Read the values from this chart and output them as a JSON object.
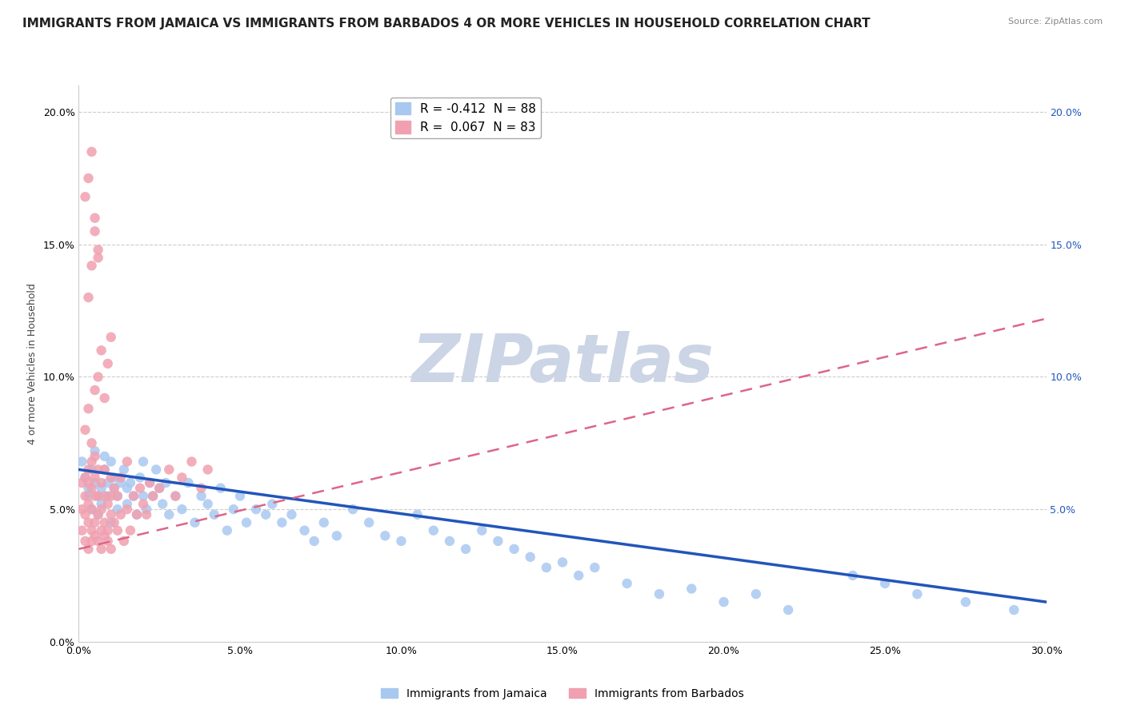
{
  "title": "IMMIGRANTS FROM JAMAICA VS IMMIGRANTS FROM BARBADOS 4 OR MORE VEHICLES IN HOUSEHOLD CORRELATION CHART",
  "source": "Source: ZipAtlas.com",
  "xlabel_bottom": "Immigrants from Jamaica",
  "xlabel_bottom2": "Immigrants from Barbados",
  "ylabel": "4 or more Vehicles in Household",
  "xlim": [
    0.0,
    0.3
  ],
  "ylim": [
    0.0,
    0.21
  ],
  "xticks": [
    0.0,
    0.05,
    0.1,
    0.15,
    0.2,
    0.25,
    0.3
  ],
  "yticks": [
    0.0,
    0.05,
    0.1,
    0.15,
    0.2
  ],
  "xtick_labels": [
    "0.0%",
    "5.0%",
    "10.0%",
    "15.0%",
    "20.0%",
    "25.0%",
    "30.0%"
  ],
  "ytick_labels": [
    "0.0%",
    "5.0%",
    "10.0%",
    "15.0%",
    "20.0%"
  ],
  "jamaica_R": -0.412,
  "jamaica_N": 88,
  "barbados_R": 0.067,
  "barbados_N": 83,
  "jamaica_color": "#a8c8f0",
  "barbados_color": "#f0a0b0",
  "jamaica_line_color": "#2255bb",
  "barbados_line_color": "#dd6688",
  "watermark_text": "ZIPatlas",
  "watermark_color": "#ccd5e5",
  "background_color": "#ffffff",
  "title_fontsize": 11,
  "legend_fontsize": 11,
  "axis_fontsize": 9,
  "jamaica_trend_x0": 0.0,
  "jamaica_trend_y0": 0.065,
  "jamaica_trend_x1": 0.3,
  "jamaica_trend_y1": 0.015,
  "barbados_trend_x0": 0.0,
  "barbados_trend_y0": 0.035,
  "barbados_trend_x1": 0.3,
  "barbados_trend_y1": 0.122,
  "jamaica_scatter_x": [
    0.001,
    0.002,
    0.003,
    0.003,
    0.004,
    0.004,
    0.005,
    0.005,
    0.006,
    0.006,
    0.007,
    0.007,
    0.008,
    0.008,
    0.009,
    0.009,
    0.01,
    0.01,
    0.011,
    0.011,
    0.012,
    0.012,
    0.013,
    0.014,
    0.015,
    0.015,
    0.016,
    0.017,
    0.018,
    0.019,
    0.02,
    0.02,
    0.021,
    0.022,
    0.023,
    0.024,
    0.025,
    0.026,
    0.027,
    0.028,
    0.03,
    0.032,
    0.034,
    0.036,
    0.038,
    0.04,
    0.042,
    0.044,
    0.046,
    0.048,
    0.05,
    0.052,
    0.055,
    0.058,
    0.06,
    0.063,
    0.066,
    0.07,
    0.073,
    0.076,
    0.08,
    0.085,
    0.09,
    0.095,
    0.1,
    0.105,
    0.11,
    0.115,
    0.12,
    0.125,
    0.13,
    0.135,
    0.14,
    0.145,
    0.15,
    0.155,
    0.16,
    0.17,
    0.18,
    0.19,
    0.2,
    0.21,
    0.22,
    0.24,
    0.25,
    0.26,
    0.275,
    0.29
  ],
  "jamaica_scatter_y": [
    0.068,
    0.062,
    0.058,
    0.055,
    0.065,
    0.05,
    0.06,
    0.072,
    0.055,
    0.048,
    0.058,
    0.052,
    0.065,
    0.07,
    0.06,
    0.055,
    0.068,
    0.045,
    0.058,
    0.062,
    0.055,
    0.05,
    0.06,
    0.065,
    0.058,
    0.052,
    0.06,
    0.055,
    0.048,
    0.062,
    0.055,
    0.068,
    0.05,
    0.06,
    0.055,
    0.065,
    0.058,
    0.052,
    0.06,
    0.048,
    0.055,
    0.05,
    0.06,
    0.045,
    0.055,
    0.052,
    0.048,
    0.058,
    0.042,
    0.05,
    0.055,
    0.045,
    0.05,
    0.048,
    0.052,
    0.045,
    0.048,
    0.042,
    0.038,
    0.045,
    0.04,
    0.05,
    0.045,
    0.04,
    0.038,
    0.048,
    0.042,
    0.038,
    0.035,
    0.042,
    0.038,
    0.035,
    0.032,
    0.028,
    0.03,
    0.025,
    0.028,
    0.022,
    0.018,
    0.02,
    0.015,
    0.018,
    0.012,
    0.025,
    0.022,
    0.018,
    0.015,
    0.012
  ],
  "barbados_scatter_x": [
    0.001,
    0.001,
    0.001,
    0.002,
    0.002,
    0.002,
    0.002,
    0.003,
    0.003,
    0.003,
    0.003,
    0.003,
    0.004,
    0.004,
    0.004,
    0.004,
    0.004,
    0.005,
    0.005,
    0.005,
    0.005,
    0.005,
    0.006,
    0.006,
    0.006,
    0.006,
    0.007,
    0.007,
    0.007,
    0.007,
    0.008,
    0.008,
    0.008,
    0.008,
    0.009,
    0.009,
    0.009,
    0.01,
    0.01,
    0.01,
    0.01,
    0.011,
    0.011,
    0.012,
    0.012,
    0.013,
    0.013,
    0.014,
    0.015,
    0.015,
    0.016,
    0.017,
    0.018,
    0.019,
    0.02,
    0.021,
    0.022,
    0.023,
    0.025,
    0.028,
    0.03,
    0.032,
    0.035,
    0.038,
    0.04,
    0.002,
    0.003,
    0.004,
    0.005,
    0.006,
    0.007,
    0.008,
    0.009,
    0.01,
    0.003,
    0.004,
    0.005,
    0.006,
    0.002,
    0.003,
    0.004,
    0.005,
    0.006
  ],
  "barbados_scatter_y": [
    0.05,
    0.042,
    0.06,
    0.048,
    0.055,
    0.038,
    0.062,
    0.045,
    0.052,
    0.035,
    0.06,
    0.065,
    0.042,
    0.05,
    0.038,
    0.058,
    0.068,
    0.045,
    0.055,
    0.04,
    0.062,
    0.07,
    0.048,
    0.055,
    0.038,
    0.065,
    0.042,
    0.05,
    0.035,
    0.06,
    0.045,
    0.055,
    0.04,
    0.065,
    0.042,
    0.052,
    0.038,
    0.048,
    0.055,
    0.035,
    0.062,
    0.045,
    0.058,
    0.042,
    0.055,
    0.048,
    0.062,
    0.038,
    0.05,
    0.068,
    0.042,
    0.055,
    0.048,
    0.058,
    0.052,
    0.048,
    0.06,
    0.055,
    0.058,
    0.065,
    0.055,
    0.062,
    0.068,
    0.058,
    0.065,
    0.08,
    0.088,
    0.075,
    0.095,
    0.1,
    0.11,
    0.092,
    0.105,
    0.115,
    0.13,
    0.142,
    0.155,
    0.145,
    0.168,
    0.175,
    0.185,
    0.16,
    0.148
  ]
}
